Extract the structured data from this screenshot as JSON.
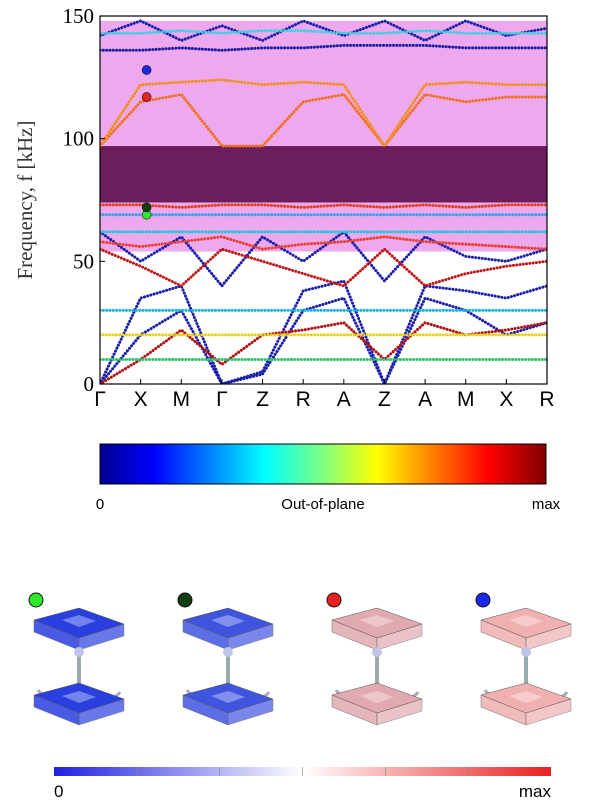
{
  "chart_data": {
    "type": "line",
    "title": "",
    "ylabel": "Frequency, f [kHz]",
    "ylim": [
      0,
      150
    ],
    "yticks": [
      0,
      50,
      100,
      150
    ],
    "x_labels": [
      "Γ",
      "X",
      "M",
      "Γ",
      "Z",
      "R",
      "A",
      "Z",
      "A",
      "M",
      "X",
      "R"
    ],
    "bands": [
      {
        "name": "partial gap",
        "from": 54,
        "to": 97,
        "color": "#ee a9ee"
      },
      {
        "name": "complete gap",
        "from": 74,
        "to": 97,
        "color": "#6b1d5e"
      },
      {
        "name": "partial gap",
        "from": 97,
        "to": 148,
        "color": "#eea9ee"
      }
    ],
    "series": [
      {
        "color": "#1a1fa8",
        "points": [
          [
            0,
            0
          ],
          [
            1,
            35
          ],
          [
            2,
            40
          ],
          [
            3,
            0
          ],
          [
            4,
            5
          ],
          [
            5,
            38
          ],
          [
            6,
            42
          ],
          [
            7,
            0
          ],
          [
            8,
            40
          ],
          [
            9,
            38
          ],
          [
            10,
            35
          ],
          [
            11,
            40
          ]
        ]
      },
      {
        "color": "#1a1fa8",
        "points": [
          [
            0,
            0
          ],
          [
            1,
            20
          ],
          [
            2,
            30
          ],
          [
            3,
            0
          ],
          [
            4,
            4
          ],
          [
            5,
            30
          ],
          [
            6,
            35
          ],
          [
            7,
            0
          ],
          [
            8,
            35
          ],
          [
            9,
            30
          ],
          [
            10,
            20
          ],
          [
            11,
            25
          ]
        ]
      },
      {
        "color": "#1a1fa8",
        "points": [
          [
            0,
            62
          ],
          [
            1,
            50
          ],
          [
            2,
            60
          ],
          [
            3,
            40
          ],
          [
            4,
            60
          ],
          [
            5,
            50
          ],
          [
            6,
            62
          ],
          [
            7,
            42
          ],
          [
            8,
            60
          ],
          [
            9,
            52
          ],
          [
            10,
            50
          ],
          [
            11,
            55
          ]
        ]
      },
      {
        "color": "#b01010",
        "points": [
          [
            0,
            0
          ],
          [
            1,
            10
          ],
          [
            2,
            22
          ],
          [
            3,
            8
          ],
          [
            4,
            20
          ],
          [
            5,
            22
          ],
          [
            6,
            25
          ],
          [
            7,
            10
          ],
          [
            8,
            25
          ],
          [
            9,
            20
          ],
          [
            10,
            22
          ],
          [
            11,
            25
          ]
        ]
      },
      {
        "color": "#c01818",
        "points": [
          [
            0,
            55
          ],
          [
            1,
            48
          ],
          [
            2,
            40
          ],
          [
            3,
            55
          ],
          [
            4,
            50
          ],
          [
            5,
            45
          ],
          [
            6,
            40
          ],
          [
            7,
            55
          ],
          [
            8,
            40
          ],
          [
            9,
            45
          ],
          [
            10,
            48
          ],
          [
            11,
            50
          ]
        ]
      },
      {
        "color": "#e94030",
        "points": [
          [
            0,
            58
          ],
          [
            1,
            56
          ],
          [
            2,
            58
          ],
          [
            3,
            60
          ],
          [
            4,
            55
          ],
          [
            5,
            57
          ],
          [
            6,
            58
          ],
          [
            7,
            60
          ],
          [
            8,
            58
          ],
          [
            9,
            57
          ],
          [
            10,
            56
          ],
          [
            11,
            55
          ]
        ]
      },
      {
        "color": "#1ec8d8",
        "points": [
          [
            0,
            62
          ],
          [
            1,
            62
          ],
          [
            2,
            62
          ],
          [
            3,
            62
          ],
          [
            4,
            62
          ],
          [
            5,
            62
          ],
          [
            6,
            62
          ],
          [
            7,
            62
          ],
          [
            8,
            62
          ],
          [
            9,
            62
          ],
          [
            10,
            62
          ],
          [
            11,
            62
          ]
        ]
      },
      {
        "color": "#3aa0e8",
        "points": [
          [
            0,
            69
          ],
          [
            1,
            69
          ],
          [
            2,
            69
          ],
          [
            3,
            69
          ],
          [
            4,
            69
          ],
          [
            5,
            69
          ],
          [
            6,
            69
          ],
          [
            7,
            69
          ],
          [
            8,
            69
          ],
          [
            9,
            69
          ],
          [
            10,
            69
          ],
          [
            11,
            69
          ]
        ]
      },
      {
        "color": "#e04020",
        "points": [
          [
            0,
            73
          ],
          [
            1,
            73
          ],
          [
            2,
            72
          ],
          [
            3,
            73
          ],
          [
            4,
            73
          ],
          [
            5,
            72
          ],
          [
            6,
            73
          ],
          [
            7,
            72
          ],
          [
            8,
            73
          ],
          [
            9,
            72
          ],
          [
            10,
            73
          ],
          [
            11,
            73
          ]
        ]
      },
      {
        "color": "#f07020",
        "points": [
          [
            0,
            97
          ],
          [
            1,
            115
          ],
          [
            2,
            118
          ],
          [
            3,
            97
          ],
          [
            4,
            97
          ],
          [
            5,
            115
          ],
          [
            6,
            118
          ],
          [
            7,
            97
          ],
          [
            8,
            118
          ],
          [
            9,
            115
          ],
          [
            10,
            117
          ],
          [
            11,
            117
          ]
        ]
      },
      {
        "color": "#f09020",
        "points": [
          [
            0,
            97
          ],
          [
            1,
            122
          ],
          [
            2,
            123
          ],
          [
            3,
            124
          ],
          [
            4,
            122
          ],
          [
            5,
            123
          ],
          [
            6,
            122
          ],
          [
            7,
            97
          ],
          [
            8,
            122
          ],
          [
            9,
            123
          ],
          [
            10,
            122
          ],
          [
            11,
            122
          ]
        ]
      },
      {
        "color": "#1a1fa8",
        "points": [
          [
            0,
            136
          ],
          [
            1,
            136
          ],
          [
            2,
            137
          ],
          [
            3,
            136
          ],
          [
            4,
            137
          ],
          [
            5,
            137
          ],
          [
            6,
            138
          ],
          [
            7,
            138
          ],
          [
            8,
            138
          ],
          [
            9,
            137
          ],
          [
            10,
            137
          ],
          [
            11,
            137
          ]
        ]
      },
      {
        "color": "#1a1fa8",
        "points": [
          [
            0,
            142
          ],
          [
            1,
            148
          ],
          [
            2,
            140
          ],
          [
            3,
            146
          ],
          [
            4,
            140
          ],
          [
            5,
            148
          ],
          [
            6,
            142
          ],
          [
            7,
            148
          ],
          [
            8,
            140
          ],
          [
            9,
            148
          ],
          [
            10,
            142
          ],
          [
            11,
            145
          ]
        ]
      },
      {
        "color": "#40d0e0",
        "points": [
          [
            0,
            143
          ],
          [
            1,
            143
          ],
          [
            2,
            144
          ],
          [
            3,
            143
          ],
          [
            4,
            144
          ],
          [
            5,
            144
          ],
          [
            6,
            143
          ],
          [
            7,
            143
          ],
          [
            8,
            144
          ],
          [
            9,
            143
          ],
          [
            10,
            143
          ],
          [
            11,
            143
          ]
        ]
      },
      {
        "color": "#30c070",
        "points": [
          [
            0,
            10
          ],
          [
            1,
            10
          ],
          [
            2,
            10
          ],
          [
            3,
            10
          ],
          [
            4,
            10
          ],
          [
            5,
            10
          ],
          [
            6,
            10
          ],
          [
            7,
            10
          ],
          [
            8,
            10
          ],
          [
            9,
            10
          ],
          [
            10,
            10
          ],
          [
            11,
            10
          ]
        ]
      },
      {
        "color": "#e8d020",
        "points": [
          [
            0,
            20
          ],
          [
            1,
            20
          ],
          [
            2,
            20
          ],
          [
            3,
            20
          ],
          [
            4,
            20
          ],
          [
            5,
            20
          ],
          [
            6,
            20
          ],
          [
            7,
            20
          ],
          [
            8,
            20
          ],
          [
            9,
            20
          ],
          [
            10,
            20
          ],
          [
            11,
            20
          ]
        ]
      },
      {
        "color": "#20b0e0",
        "points": [
          [
            0,
            30
          ],
          [
            1,
            30
          ],
          [
            2,
            30
          ],
          [
            3,
            30
          ],
          [
            4,
            30
          ],
          [
            5,
            30
          ],
          [
            6,
            30
          ],
          [
            7,
            30
          ],
          [
            8,
            30
          ],
          [
            9,
            30
          ],
          [
            10,
            30
          ],
          [
            11,
            30
          ]
        ]
      }
    ],
    "markers": [
      {
        "name": "green",
        "x": 1,
        "y": 69,
        "color": "#2ee82e"
      },
      {
        "name": "dark-green",
        "x": 1,
        "y": 72,
        "color": "#0f3d0f"
      },
      {
        "name": "red",
        "x": 1,
        "y": 117,
        "color": "#e82020"
      },
      {
        "name": "blue",
        "x": 1,
        "y": 128,
        "color": "#1a2ae8"
      }
    ],
    "colorbar": {
      "min_label": "0",
      "label": "Out-of-plane",
      "max_label": "max"
    },
    "modes_colorbar": {
      "min_label": "0",
      "max_label": "max"
    },
    "mode_shapes": [
      {
        "marker_color": "#2ee82e",
        "tint": "#2a3fe0"
      },
      {
        "marker_color": "#0f3d0f",
        "tint": "#3f55e0"
      },
      {
        "marker_color": "#e82020",
        "tint": "#e0aab0"
      },
      {
        "marker_color": "#1a2ae8",
        "tint": "#f0b0b0"
      }
    ]
  }
}
